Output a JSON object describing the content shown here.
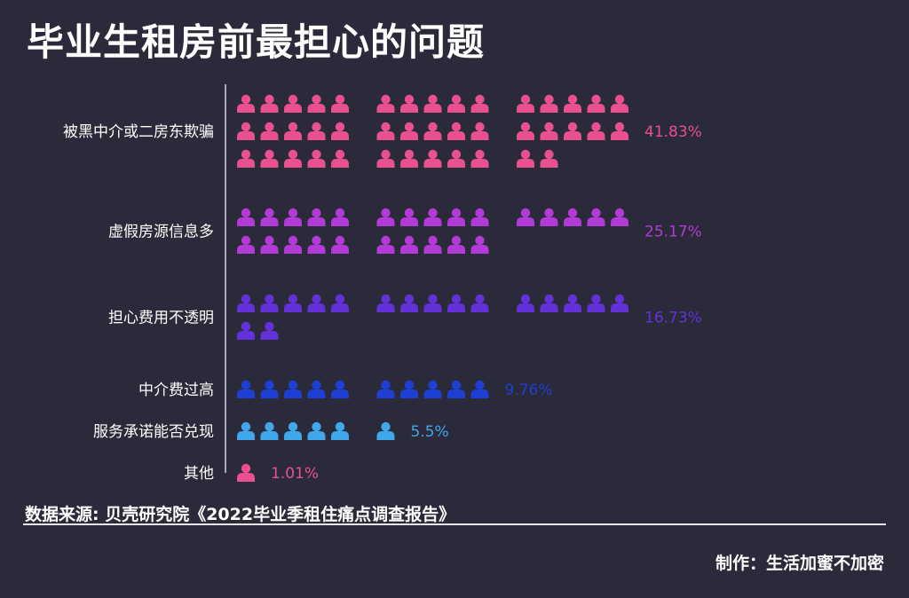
{
  "title": "毕业生租房前最担心的问题",
  "chart_data": {
    "type": "bar",
    "glyph": "person-icon",
    "categories": [
      "被黑中介或二房东欺骗",
      "虚假房源信息多",
      "担心费用不透明",
      "中介费过高",
      "服务承诺能否兑现",
      "其他"
    ],
    "values": [
      41.83,
      25.17,
      16.73,
      9.76,
      5.5,
      1.01
    ],
    "value_labels": [
      "41.83%",
      "25.17%",
      "16.73%",
      "9.76%",
      "5.5%",
      "1.01%"
    ],
    "icon_counts": [
      42,
      25,
      17,
      10,
      6,
      1
    ],
    "colors": [
      "#e8508f",
      "#b23ad6",
      "#6232d8",
      "#1d3fd3",
      "#3fa7ea",
      "#e8508f"
    ],
    "unit": "%"
  },
  "footer": {
    "source": "数据来源: 贝壳研究院《2022毕业季租住痛点调查报告》",
    "credit": "制作：生活加蜜不加密"
  }
}
